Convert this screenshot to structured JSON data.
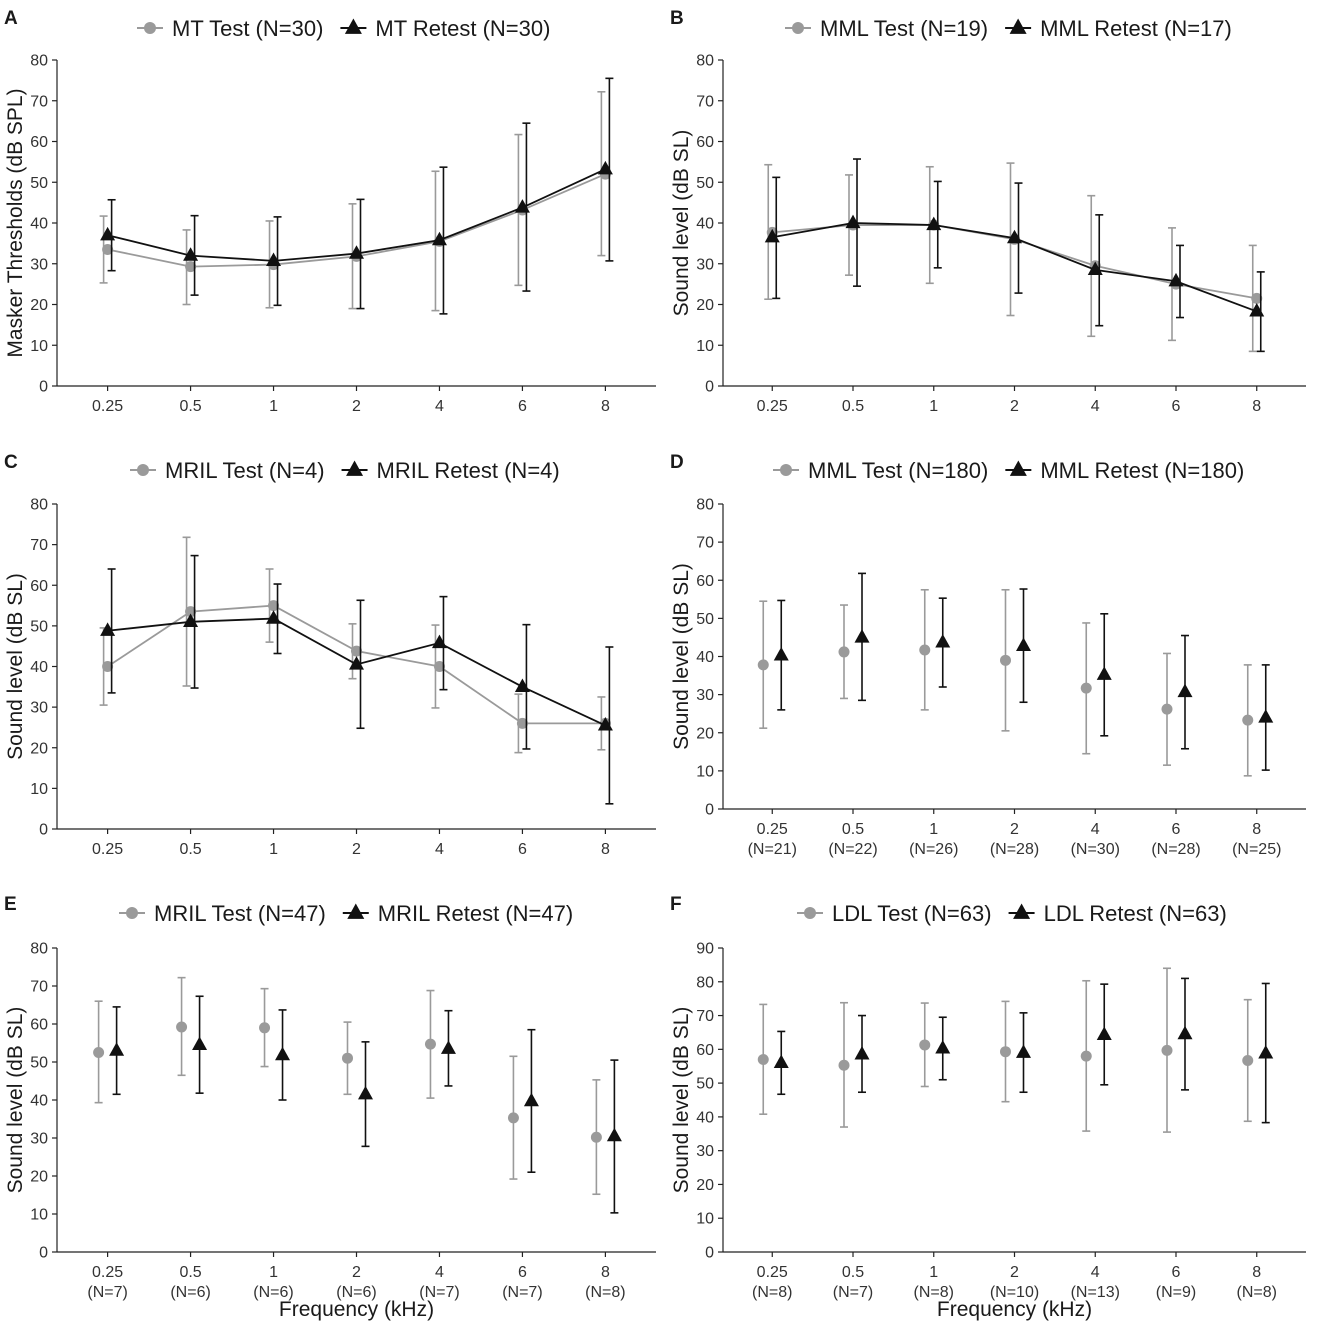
{
  "figure": {
    "x_axis_title": "Frequency (kHz)"
  },
  "colors": {
    "test": "#9a9a9a",
    "retest": "#111111",
    "axis": "#222222"
  },
  "chart_data": [
    {
      "id": "A",
      "type": "line",
      "letter": "A",
      "legend": [
        "MT Test (N=30)",
        "MT Retest (N=30)"
      ],
      "ylabel": "Masker Thresholds (dB SPL)",
      "xlabel": "",
      "ylim": [
        0,
        80
      ],
      "yticks": [
        0,
        10,
        20,
        30,
        40,
        50,
        60,
        70,
        80
      ],
      "categories": [
        "0.25",
        "0.5",
        "1",
        "2",
        "4",
        "6",
        "8"
      ],
      "category_n": [],
      "connect": true,
      "series": [
        {
          "name": "MT Test (N=30)",
          "marker": "circle",
          "values": [
            33.5,
            29.3,
            29.8,
            31.8,
            35.5,
            43.2,
            52.0
          ],
          "err_low": [
            25.3,
            20.0,
            19.2,
            19.0,
            18.5,
            24.7,
            32.0
          ],
          "err_high": [
            41.7,
            38.3,
            40.5,
            44.7,
            52.7,
            61.7,
            72.2
          ]
        },
        {
          "name": "MT Retest (N=30)",
          "marker": "triangle",
          "values": [
            37.0,
            32.0,
            30.7,
            32.5,
            35.8,
            43.8,
            53.2
          ],
          "err_low": [
            28.3,
            22.3,
            19.8,
            19.0,
            17.7,
            23.3,
            30.7
          ],
          "err_high": [
            45.7,
            41.8,
            41.5,
            45.8,
            53.7,
            64.5,
            75.5
          ]
        }
      ]
    },
    {
      "id": "B",
      "type": "line",
      "letter": "B",
      "legend": [
        "MML Test (N=19)",
        "MML Retest (N=17)"
      ],
      "ylabel": "Sound level (dB SL)",
      "xlabel": "",
      "ylim": [
        0,
        80
      ],
      "yticks": [
        0,
        10,
        20,
        30,
        40,
        50,
        60,
        70,
        80
      ],
      "categories": [
        "0.25",
        "0.5",
        "1",
        "2",
        "4",
        "6",
        "8"
      ],
      "category_n": [],
      "connect": true,
      "series": [
        {
          "name": "MML Test (N=19)",
          "marker": "circle",
          "values": [
            37.7,
            39.5,
            39.5,
            36.0,
            29.5,
            25.0,
            21.5
          ],
          "err_low": [
            21.3,
            27.2,
            25.2,
            17.3,
            12.2,
            11.2,
            8.5
          ],
          "err_high": [
            54.3,
            51.8,
            53.8,
            54.7,
            46.7,
            38.8,
            34.5
          ]
        },
        {
          "name": "MML Retest (N=17)",
          "marker": "triangle",
          "values": [
            36.5,
            40.0,
            39.5,
            36.3,
            28.5,
            25.7,
            18.3
          ],
          "err_low": [
            21.5,
            24.5,
            29.0,
            22.8,
            14.8,
            16.8,
            8.5
          ],
          "err_high": [
            51.2,
            55.7,
            50.2,
            49.8,
            42.0,
            34.5,
            28.0
          ]
        }
      ]
    },
    {
      "id": "C",
      "type": "line",
      "letter": "C",
      "legend": [
        "MRIL Test (N=4)",
        "MRIL Retest (N=4)"
      ],
      "ylabel": "Sound level (dB SL)",
      "xlabel": "",
      "ylim": [
        0,
        80
      ],
      "yticks": [
        0,
        10,
        20,
        30,
        40,
        50,
        60,
        70,
        80
      ],
      "categories": [
        "0.25",
        "0.5",
        "1",
        "2",
        "4",
        "6",
        "8"
      ],
      "category_n": [],
      "connect": true,
      "series": [
        {
          "name": "MRIL Test (N=4)",
          "marker": "circle",
          "values": [
            40.0,
            53.5,
            55.0,
            43.8,
            40.0,
            26.0,
            26.0
          ],
          "err_low": [
            30.5,
            35.2,
            46.0,
            37.0,
            29.8,
            18.8,
            19.5
          ],
          "err_high": [
            49.5,
            71.8,
            64.0,
            50.5,
            50.2,
            33.2,
            32.5
          ]
        },
        {
          "name": "MRIL Retest (N=4)",
          "marker": "triangle",
          "values": [
            48.8,
            51.0,
            51.8,
            40.5,
            45.8,
            35.0,
            25.5
          ],
          "err_low": [
            33.5,
            34.7,
            43.2,
            24.8,
            34.3,
            19.7,
            6.2
          ],
          "err_high": [
            64.0,
            67.3,
            60.3,
            56.3,
            57.2,
            50.3,
            44.8
          ]
        }
      ]
    },
    {
      "id": "D",
      "type": "scatter",
      "letter": "D",
      "legend": [
        "MML Test (N=180)",
        "MML Retest (N=180)"
      ],
      "ylabel": "Sound level (dB SL)",
      "xlabel": "",
      "ylim": [
        0,
        80
      ],
      "yticks": [
        0,
        10,
        20,
        30,
        40,
        50,
        60,
        70,
        80
      ],
      "categories": [
        "0.25",
        "0.5",
        "1",
        "2",
        "4",
        "6",
        "8"
      ],
      "category_n": [
        "(N=21)",
        "(N=22)",
        "(N=26)",
        "(N=28)",
        "(N=30)",
        "(N=28)",
        "(N=25)"
      ],
      "connect": false,
      "series": [
        {
          "name": "MML Test (N=180)",
          "marker": "circle",
          "values": [
            37.8,
            41.2,
            41.7,
            39.0,
            31.7,
            26.2,
            23.3
          ],
          "err_low": [
            21.2,
            29.0,
            26.0,
            20.5,
            14.5,
            11.5,
            8.7
          ],
          "err_high": [
            54.5,
            53.5,
            57.5,
            57.5,
            48.8,
            40.8,
            37.8
          ]
        },
        {
          "name": "MML Retest (N=180)",
          "marker": "triangle",
          "values": [
            40.3,
            45.0,
            43.7,
            42.8,
            35.2,
            30.7,
            24.0
          ],
          "err_low": [
            26.0,
            28.5,
            32.0,
            28.0,
            19.2,
            15.8,
            10.2
          ],
          "err_high": [
            54.7,
            61.8,
            55.3,
            57.7,
            51.2,
            45.5,
            37.8
          ]
        }
      ]
    },
    {
      "id": "E",
      "type": "scatter",
      "letter": "E",
      "legend": [
        "MRIL Test (N=47)",
        "MRIL Retest (N=47)"
      ],
      "ylabel": "Sound level (dB SL)",
      "xlabel": "Frequency (kHz)",
      "ylim": [
        0,
        80
      ],
      "yticks": [
        0,
        10,
        20,
        30,
        40,
        50,
        60,
        70,
        80
      ],
      "categories": [
        "0.25",
        "0.5",
        "1",
        "2",
        "4",
        "6",
        "8"
      ],
      "category_n": [
        "(N=7)",
        "(N=6)",
        "(N=6)",
        "(N=6)",
        "(N=7)",
        "(N=7)",
        "(N=8)"
      ],
      "connect": false,
      "series": [
        {
          "name": "MRIL Test (N=47)",
          "marker": "circle",
          "values": [
            52.5,
            59.2,
            59.0,
            51.0,
            54.7,
            35.3,
            30.2
          ],
          "err_low": [
            39.3,
            46.5,
            48.8,
            41.5,
            40.5,
            19.2,
            15.2
          ],
          "err_high": [
            66.0,
            72.2,
            69.3,
            60.5,
            68.8,
            51.5,
            45.3
          ]
        },
        {
          "name": "MRIL Retest (N=47)",
          "marker": "triangle",
          "values": [
            53.0,
            54.5,
            51.8,
            41.5,
            53.5,
            39.7,
            30.5
          ],
          "err_low": [
            41.5,
            41.8,
            40.0,
            27.8,
            43.7,
            21.0,
            10.3
          ],
          "err_high": [
            64.5,
            67.3,
            63.7,
            55.3,
            63.5,
            58.5,
            50.5
          ]
        }
      ]
    },
    {
      "id": "F",
      "type": "scatter",
      "letter": "F",
      "legend": [
        "LDL Test (N=63)",
        "LDL Retest (N=63)"
      ],
      "ylabel": "Sound level (dB SL)",
      "xlabel": "Frequency (kHz)",
      "ylim": [
        0,
        90
      ],
      "yticks": [
        0,
        10,
        20,
        30,
        40,
        50,
        60,
        70,
        80,
        90
      ],
      "categories": [
        "0.25",
        "0.5",
        "1",
        "2",
        "4",
        "6",
        "8"
      ],
      "category_n": [
        "(N=8)",
        "(N=7)",
        "(N=8)",
        "(N=10)",
        "(N=13)",
        "(N=9)",
        "(N=8)"
      ],
      "connect": false,
      "series": [
        {
          "name": "LDL Test (N=63)",
          "marker": "circle",
          "values": [
            57.0,
            55.3,
            61.3,
            59.3,
            58.0,
            59.7,
            56.7
          ],
          "err_low": [
            40.8,
            37.0,
            49.0,
            44.5,
            35.8,
            35.5,
            38.7
          ],
          "err_high": [
            73.3,
            73.8,
            73.7,
            74.2,
            80.3,
            84.0,
            74.7
          ]
        },
        {
          "name": "LDL Retest (N=63)",
          "marker": "triangle",
          "values": [
            56.0,
            58.5,
            60.3,
            59.0,
            64.3,
            64.5,
            58.8
          ],
          "err_low": [
            46.7,
            47.3,
            51.0,
            47.3,
            49.5,
            48.0,
            38.3
          ],
          "err_high": [
            65.3,
            70.0,
            69.5,
            70.8,
            79.3,
            81.0,
            79.5
          ]
        }
      ]
    }
  ]
}
